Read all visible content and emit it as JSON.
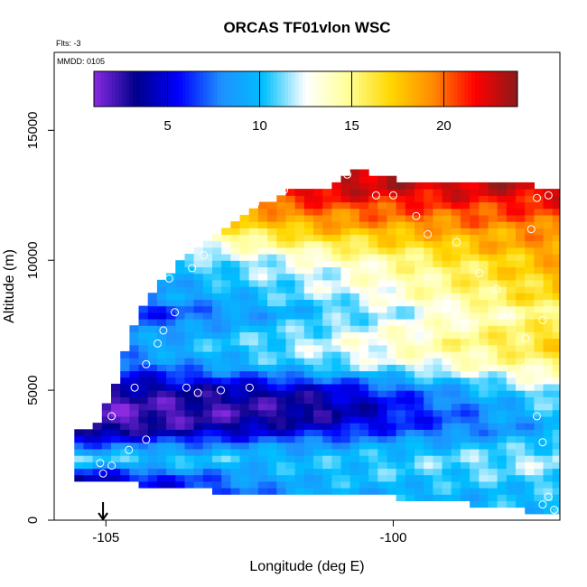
{
  "chart_data": {
    "type": "heatmap",
    "title": "ORCAS TF01vlon WSC",
    "xlabel": "Longitude (deg E)",
    "ylabel": "Altitude (m)",
    "annotation_top_left": "Flts: -3",
    "annotation_box": "MMDD: 0105",
    "xlim": [
      -105.9,
      -97.1
    ],
    "ylim": [
      0,
      18000
    ],
    "x_ticks": [
      -105,
      -100
    ],
    "x_tick_labels": [
      "-105",
      "-100"
    ],
    "y_ticks": [
      0,
      5000,
      10000,
      15000
    ],
    "y_tick_labels": [
      "0",
      "5000",
      "10000",
      "15000"
    ],
    "colorbar": {
      "range": [
        1,
        24
      ],
      "ticks": [
        5,
        10,
        15,
        20
      ],
      "tick_labels": [
        "5",
        "10",
        "15",
        "20"
      ],
      "colors": [
        "#8a2be2",
        "#00008b",
        "#0000ff",
        "#1e90ff",
        "#00bfff",
        "#ffffff",
        "#ffff99",
        "#ffd700",
        "#ff8c00",
        "#ff0000",
        "#8b1a1a"
      ]
    },
    "value_label": "WSC",
    "grid_resolution": {
      "dlon": 0.16,
      "dalt": 250
    },
    "top_boundary": [
      {
        "lon": -105.5,
        "alt": 3300
      },
      {
        "lon": -105.2,
        "alt": 3300
      },
      {
        "lon": -105.0,
        "alt": 4200
      },
      {
        "lon": -104.8,
        "alt": 5400
      },
      {
        "lon": -104.6,
        "alt": 6900
      },
      {
        "lon": -104.3,
        "alt": 8300
      },
      {
        "lon": -104.0,
        "alt": 9200
      },
      {
        "lon": -103.6,
        "alt": 10100
      },
      {
        "lon": -103.2,
        "alt": 10800
      },
      {
        "lon": -102.8,
        "alt": 11400
      },
      {
        "lon": -102.4,
        "alt": 12000
      },
      {
        "lon": -101.8,
        "alt": 12500
      },
      {
        "lon": -101.0,
        "alt": 12800
      },
      {
        "lon": -100.6,
        "alt": 13400
      },
      {
        "lon": -100.0,
        "alt": 13000
      },
      {
        "lon": -99.0,
        "alt": 12900
      },
      {
        "lon": -97.8,
        "alt": 12900
      },
      {
        "lon": -97.2,
        "alt": 12600
      }
    ],
    "bottom_boundary": [
      {
        "lon": -105.5,
        "alt": 1600
      },
      {
        "lon": -104.5,
        "alt": 1500
      },
      {
        "lon": -103.5,
        "alt": 1300
      },
      {
        "lon": -102.0,
        "alt": 1100
      },
      {
        "lon": -100.0,
        "alt": 1000
      },
      {
        "lon": -99.0,
        "alt": 800
      },
      {
        "lon": -98.0,
        "alt": 600
      },
      {
        "lon": -97.2,
        "alt": 300
      }
    ],
    "layer_profiles": {
      "altitudes": [
        0,
        1000,
        1700,
        2300,
        2800,
        3500,
        4000,
        4500,
        5000,
        6000,
        6800,
        7500,
        8000,
        8500,
        9000,
        9500,
        10000,
        10500,
        11000,
        11500,
        12000,
        12500,
        13000,
        14000
      ],
      "west_values": [
        3,
        3,
        4,
        11,
        8,
        2,
        1.5,
        2,
        3,
        6,
        8,
        6,
        4,
        7,
        6,
        9,
        8,
        10,
        12,
        14,
        15,
        19,
        21,
        21
      ],
      "mid_values": [
        9,
        9,
        10,
        10,
        9,
        5,
        3,
        3,
        4,
        11,
        12,
        11,
        10,
        11,
        12,
        12,
        13,
        15,
        17,
        19,
        20,
        22,
        23,
        23
      ],
      "east_values": [
        10,
        10,
        11,
        12,
        11,
        9,
        10,
        11,
        12,
        15,
        17,
        16,
        15,
        17,
        17,
        18,
        18,
        19,
        19,
        20,
        21,
        22,
        23,
        23
      ]
    },
    "sample_points": [
      {
        "lon": -105.05,
        "alt": 1800
      },
      {
        "lon": -105.1,
        "alt": 2200
      },
      {
        "lon": -104.9,
        "alt": 2100
      },
      {
        "lon": -104.9,
        "alt": 4000
      },
      {
        "lon": -104.6,
        "alt": 2700
      },
      {
        "lon": -104.3,
        "alt": 3100
      },
      {
        "lon": -104.5,
        "alt": 5100
      },
      {
        "lon": -104.3,
        "alt": 6000
      },
      {
        "lon": -104.1,
        "alt": 6800
      },
      {
        "lon": -104.0,
        "alt": 7300
      },
      {
        "lon": -103.8,
        "alt": 8000
      },
      {
        "lon": -103.9,
        "alt": 9300
      },
      {
        "lon": -103.5,
        "alt": 9700
      },
      {
        "lon": -103.3,
        "alt": 10200
      },
      {
        "lon": -103.0,
        "alt": 11500
      },
      {
        "lon": -103.6,
        "alt": 5100
      },
      {
        "lon": -103.4,
        "alt": 4900
      },
      {
        "lon": -103.0,
        "alt": 5000
      },
      {
        "lon": -102.5,
        "alt": 5100
      },
      {
        "lon": -102.4,
        "alt": 12200
      },
      {
        "lon": -101.9,
        "alt": 12700
      },
      {
        "lon": -100.8,
        "alt": 13300
      },
      {
        "lon": -100.3,
        "alt": 12500
      },
      {
        "lon": -100.0,
        "alt": 12500
      },
      {
        "lon": -99.6,
        "alt": 11700
      },
      {
        "lon": -99.4,
        "alt": 11000
      },
      {
        "lon": -98.9,
        "alt": 10700
      },
      {
        "lon": -98.5,
        "alt": 9500
      },
      {
        "lon": -98.2,
        "alt": 8900
      },
      {
        "lon": -98.0,
        "alt": 8000
      },
      {
        "lon": -97.7,
        "alt": 7000
      },
      {
        "lon": -97.4,
        "alt": 7700
      },
      {
        "lon": -97.3,
        "alt": 12500
      },
      {
        "lon": -97.5,
        "alt": 12400
      },
      {
        "lon": -97.6,
        "alt": 11200
      },
      {
        "lon": -97.7,
        "alt": 5900
      },
      {
        "lon": -97.5,
        "alt": 4000
      },
      {
        "lon": -97.4,
        "alt": 3000
      },
      {
        "lon": -97.3,
        "alt": 900
      },
      {
        "lon": -97.4,
        "alt": 600
      },
      {
        "lon": -97.2,
        "alt": 400
      }
    ],
    "marker": {
      "lon": -105.05,
      "alt": 0,
      "shape": "down-arrow"
    }
  }
}
